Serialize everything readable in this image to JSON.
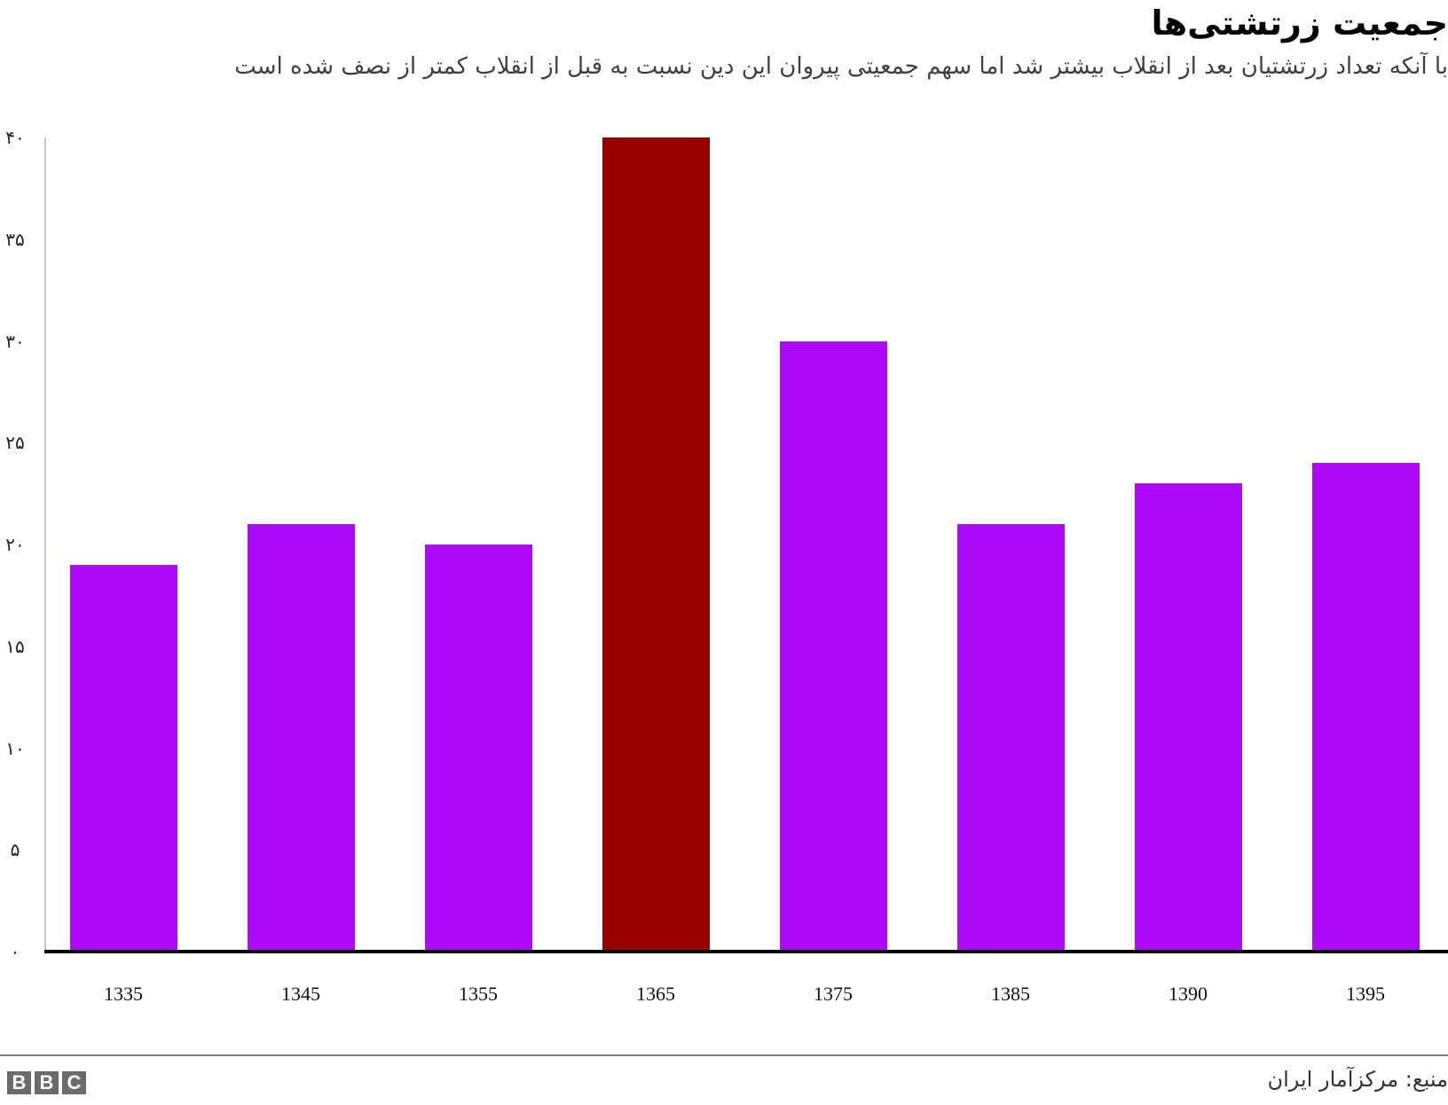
{
  "header": {
    "title": "جمعیت زرتشتی‌ها",
    "subtitle": "با آنکه تعداد زرتشتیان بعد از انقلاب بیشتر شد اما سهم جمعیتی پیروان این دین نسبت به قبل از انقلاب کمتر از نصف شده است"
  },
  "footer": {
    "logo": [
      "B",
      "B",
      "C"
    ],
    "source": "منبع: مرکزآمار ایران"
  },
  "colors": {
    "default_bar": "#ad0afa",
    "highlight_bar": "#990000",
    "axis": "#000000",
    "gridline": "#c8c8c8"
  },
  "chart_data": {
    "type": "bar",
    "title": "جمعیت زرتشتی‌ها",
    "subtitle": "با آنکه تعداد زرتشتیان بعد از انقلاب بیشتر شد اما سهم جمعیتی پیروان این دین نسبت به قبل از انقلاب کمتر از نصف شده است",
    "xlabel": "",
    "ylabel": "",
    "categories": [
      "1335",
      "1345",
      "1355",
      "1365",
      "1375",
      "1385",
      "1390",
      "1395"
    ],
    "values": [
      19,
      21,
      20,
      40,
      30,
      21,
      23,
      24
    ],
    "highlight_index": 3,
    "ylim": [
      0,
      40
    ],
    "yticks": [
      0,
      5,
      10,
      15,
      20,
      25,
      30,
      35,
      40
    ],
    "ytick_labels": [
      "۰",
      "۵",
      "۱۰",
      "۱۵",
      "۲۰",
      "۲۵",
      "۳۰",
      "۳۵",
      "۴۰"
    ],
    "grid": false,
    "legend": null,
    "source": "منبع: مرکزآمار ایران"
  }
}
